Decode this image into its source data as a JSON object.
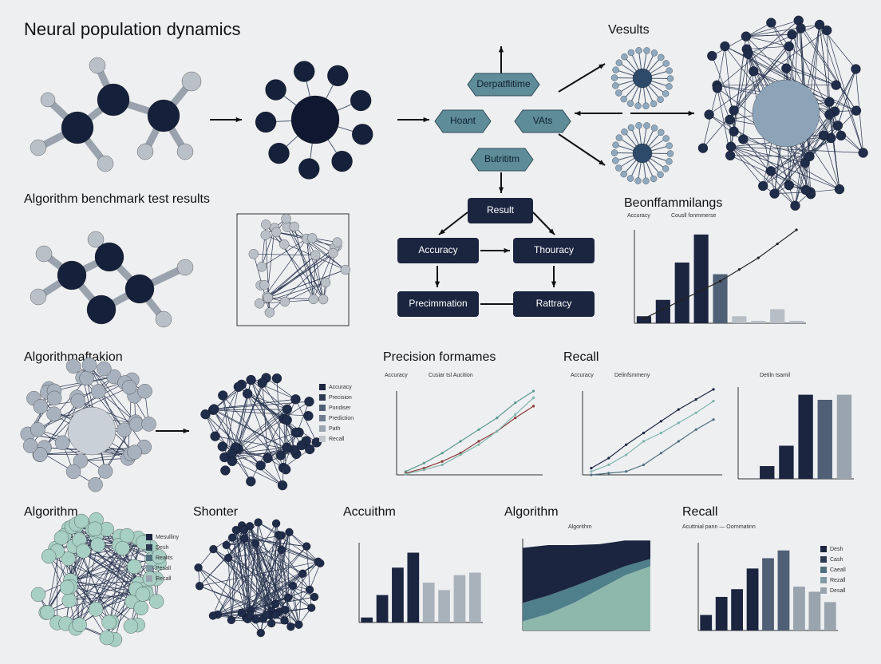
{
  "title": "Neural population dynamics",
  "headings": {
    "vesults": "Vesults",
    "benchmark": "Algorithm benchmark test results",
    "benchmark_chart": "Beonffammilangs",
    "fraction": "Algorithmaftakion",
    "precision": "Precision formames",
    "recall": "Recall",
    "algorithm_a": "Algorithm",
    "shonter": "Shonter",
    "accuithm": "Accuithm",
    "algorithm_b": "Algorithm",
    "recall_b": "Recall"
  },
  "flow": {
    "top": "Derpatflitime",
    "left": "Hoant",
    "right": "VAts",
    "bottom": "Butrititm",
    "result": "Result",
    "boxes": [
      "Accuracy",
      "Thouracy",
      "Precimmation",
      "Rattracy"
    ]
  },
  "legends": {
    "fraction": [
      "Accuracy",
      "Precision",
      "Pondiser",
      "Prediction",
      "Path",
      "Recall"
    ],
    "algorithm_a": [
      "Mesulliny",
      "Desh",
      "Realits",
      "Pesall",
      "Recall"
    ],
    "recall_b": [
      "Desh",
      "Cash",
      "Caeall",
      "Rezall",
      "Desall"
    ]
  },
  "charts": {
    "benchmark": {
      "header": [
        "Accuracy",
        "Cousll fonmmerse"
      ],
      "ylim": [
        0,
        40
      ],
      "values": [
        3,
        10,
        26,
        38,
        21,
        3,
        1,
        6,
        1
      ],
      "colors": [
        "#1b2540",
        "#1b2540",
        "#1b2540",
        "#1b2540",
        "#4f5f75",
        "#b7bec6",
        "#b7bec6",
        "#b7bec6",
        "#b7bec6"
      ],
      "line": [
        2,
        6,
        10,
        14,
        18,
        23,
        28,
        34,
        40
      ]
    },
    "precision": {
      "header": [
        "Accuracy",
        "Cusiar tsl Aucition"
      ],
      "ylim": [
        0,
        100
      ],
      "series": [
        {
          "color": "#5b9a8f",
          "values": [
            4,
            14,
            26,
            40,
            54,
            68,
            86,
            100
          ]
        },
        {
          "color": "#8b3a3a",
          "values": [
            2,
            8,
            16,
            26,
            40,
            52,
            68,
            82
          ]
        },
        {
          "color": "#7fb5ad",
          "values": [
            1,
            6,
            12,
            24,
            36,
            52,
            72,
            92
          ]
        }
      ]
    },
    "recall": {
      "header": [
        "Accuracy",
        "Delinfsmmeny"
      ],
      "ylim": [
        0,
        100
      ],
      "series": [
        {
          "color": "#1b2540",
          "values": [
            8,
            20,
            36,
            50,
            64,
            78,
            90,
            102
          ]
        },
        {
          "color": "#7fb5ad",
          "values": [
            4,
            12,
            24,
            40,
            50,
            62,
            74,
            88
          ]
        },
        {
          "color": "#4f6f80",
          "values": [
            0,
            2,
            4,
            12,
            26,
            40,
            54,
            66
          ]
        }
      ]
    },
    "recall_bars": {
      "header": "Detiln tsamil",
      "ylim": [
        0,
        36
      ],
      "values": [
        0,
        5,
        13,
        33,
        31,
        33
      ],
      "colors": [
        "#1b2540",
        "#1b2540",
        "#1b2540",
        "#1b2540",
        "#4f5f75",
        "#9aa4ae"
      ]
    },
    "accuithm": {
      "ylim": [
        0,
        32
      ],
      "values": [
        2,
        11,
        22,
        28,
        16,
        13,
        19,
        20
      ],
      "colors": [
        "#1b2540",
        "#1b2540",
        "#1b2540",
        "#1b2540",
        "#a9b2bb",
        "#a9b2bb",
        "#a9b2bb",
        "#a9b2bb"
      ]
    },
    "area": {
      "header": "Algorithm",
      "ylim": [
        0,
        100
      ],
      "layers": [
        {
          "color": "#8fb8ad",
          "values": [
            10,
            18,
            30,
            45,
            60,
            70
          ]
        },
        {
          "color": "#4f7f8a",
          "values": [
            20,
            20,
            18,
            14,
            10,
            8
          ]
        },
        {
          "color": "#1b2540",
          "values": [
            60,
            55,
            45,
            35,
            28,
            20
          ]
        }
      ]
    },
    "recall_b": {
      "header": "Acuttnial pann — Oornmatinn",
      "ylim": [
        0,
        34
      ],
      "values": [
        6,
        13,
        16,
        24,
        28,
        31,
        17,
        15,
        11
      ],
      "colors": [
        "#1b2540",
        "#1b2540",
        "#1b2540",
        "#1b2540",
        "#4f5f75",
        "#4f5f75",
        "#9aa4ae",
        "#9aa4ae",
        "#9aa4ae"
      ]
    }
  }
}
